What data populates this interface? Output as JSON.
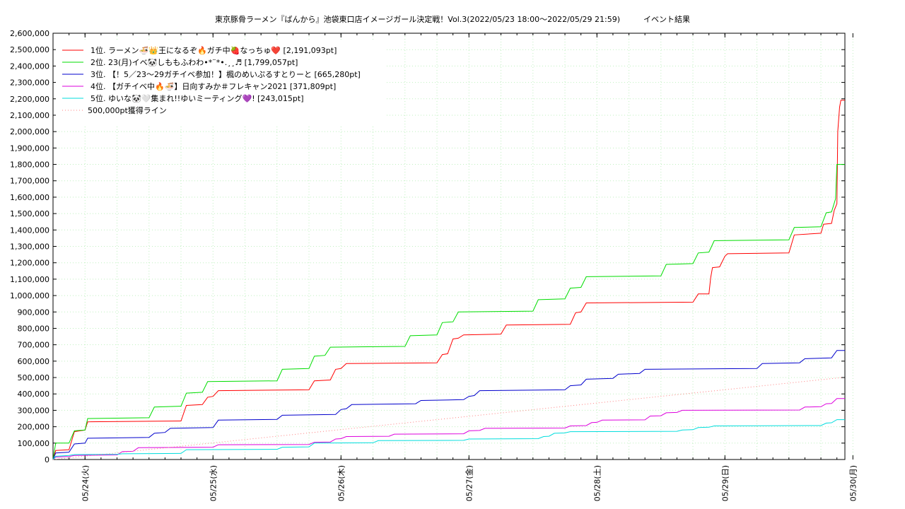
{
  "chart_data": {
    "type": "line",
    "title": "東京豚骨ラーメン『ばんから』池袋東口店イメージガール決定戦！Vol.3(2022/05/23 18:00～2022/05/29 21:59)　　　イベント結果",
    "xlabel": "",
    "ylabel": "",
    "x_range": [
      "2022/05/23 18:00",
      "2022/05/29 22:30"
    ],
    "ylim": [
      0,
      2600000
    ],
    "y_ticks": [
      "0",
      "100,000",
      "200,000",
      "300,000",
      "400,000",
      "500,000",
      "600,000",
      "700,000",
      "800,000",
      "900,000",
      "1,000,000",
      "1,100,000",
      "1,200,000",
      "1,300,000",
      "1,400,000",
      "1,500,000",
      "1,600,000",
      "1,700,000",
      "1,800,000",
      "1,900,000",
      "2,000,000",
      "2,100,000",
      "2,200,000",
      "2,300,000",
      "2,400,000",
      "2,500,000",
      "2,600,000"
    ],
    "x_ticks": [
      {
        "label": "05/24(火)",
        "at": "2022/05/24 00:00"
      },
      {
        "label": "05/25(水)",
        "at": "2022/05/25 00:00"
      },
      {
        "label": "05/26(木)",
        "at": "2022/05/26 00:00"
      },
      {
        "label": "05/27(金)",
        "at": "2022/05/27 00:00"
      },
      {
        "label": "05/28(土)",
        "at": "2022/05/28 00:00"
      },
      {
        "label": "05/29(日)",
        "at": "2022/05/29 00:00"
      },
      {
        "label": "05/30(月)",
        "at": "2022/05/30 00:00"
      }
    ],
    "grid": true,
    "legend_position": "top-left",
    "series": [
      {
        "name": "1位. ラーメン🍜👑王になるぞ🔥ガチ中🍓なっちゅ❤️ [2,191,093pt]",
        "color": "#ff0000",
        "points": [
          [
            "05/23 18:00",
            0
          ],
          [
            "05/23 18:30",
            55000
          ],
          [
            "05/23 21:00",
            60000
          ],
          [
            "05/23 22:00",
            170000
          ],
          [
            "05/24 00:00",
            180000
          ],
          [
            "05/24 00:30",
            230000
          ],
          [
            "05/24 18:00",
            235000
          ],
          [
            "05/24 19:00",
            330000
          ],
          [
            "05/24 22:00",
            335000
          ],
          [
            "05/24 23:00",
            380000
          ],
          [
            "05/25 00:00",
            385000
          ],
          [
            "05/25 01:00",
            420000
          ],
          [
            "05/25 18:00",
            425000
          ],
          [
            "05/25 19:00",
            480000
          ],
          [
            "05/25 22:00",
            485000
          ],
          [
            "05/25 23:00",
            550000
          ],
          [
            "05/26 00:00",
            555000
          ],
          [
            "05/26 01:00",
            585000
          ],
          [
            "05/26 18:00",
            590000
          ],
          [
            "05/26 19:00",
            640000
          ],
          [
            "05/26 20:00",
            645000
          ],
          [
            "05/26 21:00",
            735000
          ],
          [
            "05/26 22:00",
            740000
          ],
          [
            "05/26 23:00",
            760000
          ],
          [
            "05/27 06:00",
            765000
          ],
          [
            "05/27 07:00",
            820000
          ],
          [
            "05/27 19:00",
            825000
          ],
          [
            "05/27 20:00",
            895000
          ],
          [
            "05/27 21:00",
            900000
          ],
          [
            "05/27 22:00",
            955000
          ],
          [
            "05/28 18:00",
            960000
          ],
          [
            "05/28 19:00",
            1010000
          ],
          [
            "05/28 21:00",
            1010000
          ],
          [
            "05/28 21:20",
            1110000
          ],
          [
            "05/28 21:40",
            1170000
          ],
          [
            "05/28 23:00",
            1175000
          ],
          [
            "05/29 00:00",
            1240000
          ],
          [
            "05/29 00:30",
            1255000
          ],
          [
            "05/29 12:00",
            1260000
          ],
          [
            "05/29 13:00",
            1370000
          ],
          [
            "05/29 18:00",
            1380000
          ],
          [
            "05/29 18:30",
            1435000
          ],
          [
            "05/29 20:00",
            1440000
          ],
          [
            "05/29 20:30",
            1520000
          ],
          [
            "05/29 21:00",
            1560000
          ],
          [
            "05/29 21:10",
            2000000
          ],
          [
            "05/29 21:30",
            2150000
          ],
          [
            "05/29 21:45",
            2191093
          ],
          [
            "05/29 22:30",
            2191093
          ]
        ]
      },
      {
        "name": "2位. 23(月)イベ🐼しももふわわ•*¨*•.¸¸♬ [1,799,057pt]",
        "color": "#00dd00",
        "points": [
          [
            "05/23 18:00",
            0
          ],
          [
            "05/23 18:30",
            100000
          ],
          [
            "05/23 21:00",
            100000
          ],
          [
            "05/23 22:00",
            175000
          ],
          [
            "05/24 00:00",
            180000
          ],
          [
            "05/24 00:30",
            250000
          ],
          [
            "05/24 12:00",
            255000
          ],
          [
            "05/24 13:00",
            320000
          ],
          [
            "05/24 18:00",
            325000
          ],
          [
            "05/24 19:00",
            405000
          ],
          [
            "05/24 22:00",
            410000
          ],
          [
            "05/24 23:00",
            475000
          ],
          [
            "05/25 12:00",
            480000
          ],
          [
            "05/25 13:00",
            550000
          ],
          [
            "05/25 18:00",
            555000
          ],
          [
            "05/25 19:00",
            630000
          ],
          [
            "05/25 21:00",
            635000
          ],
          [
            "05/25 22:00",
            685000
          ],
          [
            "05/26 12:00",
            690000
          ],
          [
            "05/26 13:00",
            755000
          ],
          [
            "05/26 18:00",
            760000
          ],
          [
            "05/26 19:00",
            835000
          ],
          [
            "05/26 21:00",
            840000
          ],
          [
            "05/26 22:00",
            900000
          ],
          [
            "05/27 12:00",
            905000
          ],
          [
            "05/27 13:00",
            975000
          ],
          [
            "05/27 18:00",
            980000
          ],
          [
            "05/27 19:00",
            1045000
          ],
          [
            "05/27 21:00",
            1050000
          ],
          [
            "05/27 22:00",
            1115000
          ],
          [
            "05/28 12:00",
            1120000
          ],
          [
            "05/28 13:00",
            1190000
          ],
          [
            "05/28 18:00",
            1195000
          ],
          [
            "05/28 19:00",
            1260000
          ],
          [
            "05/28 21:00",
            1265000
          ],
          [
            "05/28 22:00",
            1335000
          ],
          [
            "05/29 12:00",
            1340000
          ],
          [
            "05/29 13:00",
            1415000
          ],
          [
            "05/29 18:00",
            1420000
          ],
          [
            "05/29 19:00",
            1505000
          ],
          [
            "05/29 20:00",
            1510000
          ],
          [
            "05/29 20:45",
            1590000
          ],
          [
            "05/29 21:00",
            1800000
          ],
          [
            "05/29 22:30",
            1799057
          ]
        ]
      },
      {
        "name": "3位. 【！5／23〜29ガチイベ参加！】楓のめいぷるすとりーと [665,280pt]",
        "color": "#0000cc",
        "points": [
          [
            "05/23 18:00",
            0
          ],
          [
            "05/23 18:30",
            40000
          ],
          [
            "05/23 21:00",
            45000
          ],
          [
            "05/23 22:00",
            95000
          ],
          [
            "05/24 00:00",
            100000
          ],
          [
            "05/24 00:30",
            130000
          ],
          [
            "05/24 12:00",
            135000
          ],
          [
            "05/24 13:00",
            160000
          ],
          [
            "05/24 15:00",
            165000
          ],
          [
            "05/24 16:00",
            190000
          ],
          [
            "05/25 00:00",
            195000
          ],
          [
            "05/25 01:00",
            240000
          ],
          [
            "05/25 12:00",
            245000
          ],
          [
            "05/25 13:00",
            270000
          ],
          [
            "05/25 23:00",
            275000
          ],
          [
            "05/26 00:00",
            305000
          ],
          [
            "05/26 01:00",
            310000
          ],
          [
            "05/26 02:00",
            335000
          ],
          [
            "05/26 14:00",
            340000
          ],
          [
            "05/26 15:00",
            360000
          ],
          [
            "05/26 23:00",
            365000
          ],
          [
            "05/27 00:00",
            385000
          ],
          [
            "05/27 01:00",
            390000
          ],
          [
            "05/27 02:00",
            420000
          ],
          [
            "05/27 18:00",
            425000
          ],
          [
            "05/27 19:00",
            450000
          ],
          [
            "05/27 21:00",
            455000
          ],
          [
            "05/27 22:00",
            490000
          ],
          [
            "05/28 03:00",
            495000
          ],
          [
            "05/28 04:00",
            520000
          ],
          [
            "05/28 08:00",
            525000
          ],
          [
            "05/28 09:00",
            550000
          ],
          [
            "05/29 06:00",
            555000
          ],
          [
            "05/29 07:00",
            585000
          ],
          [
            "05/29 14:00",
            590000
          ],
          [
            "05/29 15:00",
            615000
          ],
          [
            "05/29 20:00",
            620000
          ],
          [
            "05/29 21:00",
            665280
          ],
          [
            "05/29 22:30",
            665280
          ]
        ]
      },
      {
        "name": "4位. 【ガチイベ中🔥🍜】日向すみか＃フレキャン2021 [371,809pt]",
        "color": "#dd00dd",
        "points": [
          [
            "05/23 18:00",
            0
          ],
          [
            "05/23 18:30",
            15000
          ],
          [
            "05/23 21:00",
            18000
          ],
          [
            "05/23 22:00",
            25000
          ],
          [
            "05/24 06:00",
            28000
          ],
          [
            "05/24 07:00",
            48000
          ],
          [
            "05/24 09:00",
            50000
          ],
          [
            "05/24 10:00",
            72000
          ],
          [
            "05/25 00:00",
            75000
          ],
          [
            "05/25 01:00",
            90000
          ],
          [
            "05/25 18:00",
            92000
          ],
          [
            "05/25 19:00",
            105000
          ],
          [
            "05/25 22:00",
            107000
          ],
          [
            "05/25 23:00",
            125000
          ],
          [
            "05/26 00:00",
            127000
          ],
          [
            "05/26 01:00",
            140000
          ],
          [
            "05/26 09:00",
            142000
          ],
          [
            "05/26 10:00",
            155000
          ],
          [
            "05/26 23:00",
            157000
          ],
          [
            "05/27 00:00",
            175000
          ],
          [
            "05/27 02:00",
            177000
          ],
          [
            "05/27 03:00",
            190000
          ],
          [
            "05/27 18:00",
            192000
          ],
          [
            "05/27 19:00",
            205000
          ],
          [
            "05/27 22:00",
            207000
          ],
          [
            "05/27 23:00",
            225000
          ],
          [
            "05/28 00:00",
            227000
          ],
          [
            "05/28 01:00",
            240000
          ],
          [
            "05/28 09:00",
            242000
          ],
          [
            "05/28 10:00",
            265000
          ],
          [
            "05/28 12:00",
            267000
          ],
          [
            "05/28 13:00",
            285000
          ],
          [
            "05/28 15:00",
            287000
          ],
          [
            "05/28 16:00",
            300000
          ],
          [
            "05/29 14:00",
            302000
          ],
          [
            "05/29 15:00",
            320000
          ],
          [
            "05/29 18:00",
            322000
          ],
          [
            "05/29 19:00",
            340000
          ],
          [
            "05/29 20:00",
            342000
          ],
          [
            "05/29 21:00",
            371809
          ],
          [
            "05/29 22:30",
            371809
          ]
        ]
      },
      {
        "name": "5位. ゆいな🐼🤍集まれ!!ゆいミーティング💜! [243,015pt]",
        "color": "#00dddd",
        "points": [
          [
            "05/23 18:00",
            0
          ],
          [
            "05/23 18:30",
            20000
          ],
          [
            "05/23 21:00",
            25000
          ],
          [
            "05/23 22:00",
            30000
          ],
          [
            "05/24 06:00",
            32000
          ],
          [
            "05/24 07:00",
            35000
          ],
          [
            "05/24 18:00",
            37000
          ],
          [
            "05/24 19:00",
            60000
          ],
          [
            "05/25 12:00",
            62000
          ],
          [
            "05/25 13:00",
            75000
          ],
          [
            "05/25 18:00",
            77000
          ],
          [
            "05/25 19:00",
            100000
          ],
          [
            "05/26 06:00",
            102000
          ],
          [
            "05/26 07:00",
            115000
          ],
          [
            "05/26 23:00",
            117000
          ],
          [
            "05/27 00:00",
            125000
          ],
          [
            "05/27 13:00",
            127000
          ],
          [
            "05/27 14:00",
            140000
          ],
          [
            "05/27 15:00",
            142000
          ],
          [
            "05/27 16:00",
            160000
          ],
          [
            "05/27 18:00",
            162000
          ],
          [
            "05/27 19:00",
            170000
          ],
          [
            "05/28 15:00",
            172000
          ],
          [
            "05/28 16:00",
            180000
          ],
          [
            "05/28 18:00",
            182000
          ],
          [
            "05/28 19:00",
            195000
          ],
          [
            "05/28 21:00",
            197000
          ],
          [
            "05/28 22:00",
            205000
          ],
          [
            "05/29 18:00",
            207000
          ],
          [
            "05/29 19:00",
            222000
          ],
          [
            "05/29 20:00",
            224000
          ],
          [
            "05/29 21:00",
            243015
          ],
          [
            "05/29 22:30",
            243015
          ]
        ]
      },
      {
        "name": "500,000pt獲得ライン",
        "color": "#ff8080",
        "style": "dotted",
        "points": [
          [
            "05/23 18:00",
            0
          ],
          [
            "05/29 22:00",
            500000
          ]
        ]
      }
    ]
  }
}
